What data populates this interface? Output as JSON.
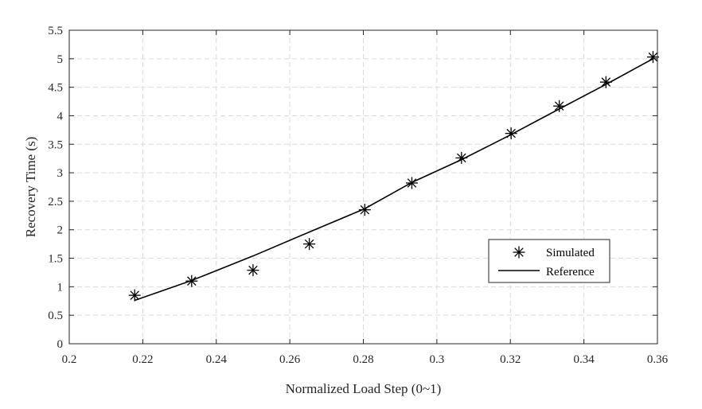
{
  "chart_data": {
    "type": "line",
    "title": "",
    "xlabel": "Normalized Load Step (0~1)",
    "ylabel": "Recovery Time (s)",
    "xlim": [
      0.2,
      0.36
    ],
    "ylim": [
      0,
      5.5
    ],
    "xticks": [
      0.2,
      0.22,
      0.24,
      0.26,
      0.28,
      0.3,
      0.32,
      0.34,
      0.36
    ],
    "xtick_labels": [
      "0.2",
      "0.22",
      "0.24",
      "0.26",
      "0.28",
      "0.3",
      "0.32",
      "0.34",
      "0.36"
    ],
    "yticks": [
      0,
      0.5,
      1,
      1.5,
      2,
      2.5,
      3,
      3.5,
      4,
      4.5,
      5,
      5.5
    ],
    "ytick_labels": [
      "0",
      "0.5",
      "1",
      "1.5",
      "2",
      "2.5",
      "3",
      "3.5",
      "4",
      "4.5",
      "5",
      "5.5"
    ],
    "grid": true,
    "legend_position": "right",
    "series": [
      {
        "name": "Simulated",
        "kind": "scatter",
        "marker": "asterisk",
        "color": "#000000",
        "x": [
          0.2178,
          0.2333,
          0.25,
          0.2653,
          0.2804,
          0.2932,
          0.3067,
          0.3202,
          0.3333,
          0.346,
          0.3588
        ],
        "y": [
          0.85,
          1.1,
          1.29,
          1.75,
          2.35,
          2.82,
          3.26,
          3.69,
          4.17,
          4.59,
          5.03
        ]
      },
      {
        "name": "Reference",
        "kind": "line",
        "color": "#000000",
        "x": [
          0.2178,
          0.2333,
          0.25,
          0.2653,
          0.2804,
          0.2932,
          0.3067,
          0.3202,
          0.3333,
          0.346,
          0.3588
        ],
        "y": [
          0.76,
          1.11,
          1.54,
          1.96,
          2.37,
          2.83,
          3.23,
          3.67,
          4.12,
          4.55,
          5.0
        ]
      }
    ]
  }
}
